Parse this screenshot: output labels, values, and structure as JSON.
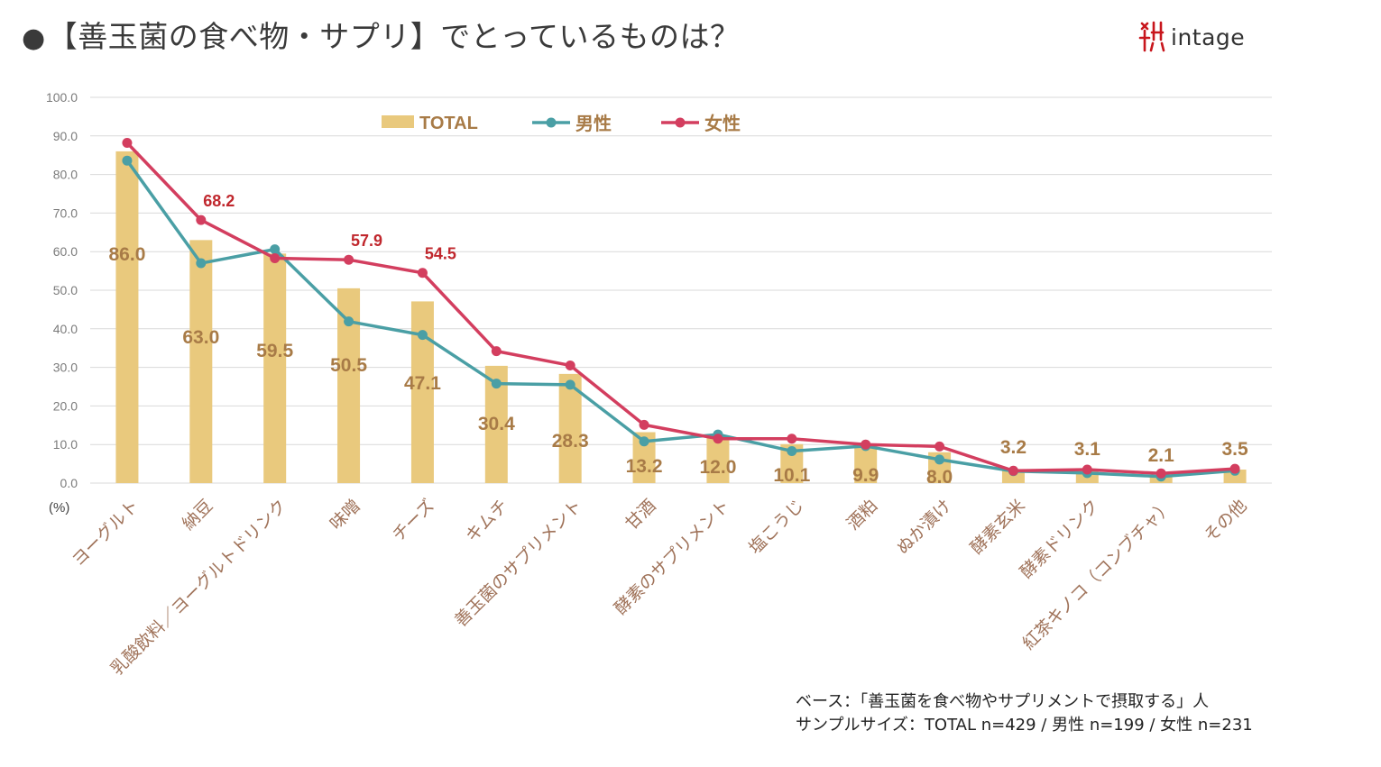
{
  "title": {
    "bullet": "●",
    "text": "【善玉菌の食べ物・サプリ】でとっているものは？"
  },
  "logo": {
    "text": "intage"
  },
  "footer": {
    "base": "ベース：「善玉菌を食べ物やサプリメントで摂取する」人",
    "sample": "サンプルサイズ：TOTAL n=429 / 男性 n=199 / 女性 n=231"
  },
  "colors": {
    "total": "#E9C97D",
    "male": "#4A9FA5",
    "female": "#D33E5F",
    "total_label": "#A87B47",
    "female_label": "#C0272D",
    "axis_text": "#7B7B7B",
    "category_text": "#A0735A",
    "grid": "#D9D9D9"
  },
  "chart_data": {
    "type": "bar",
    "unit": "(%)",
    "ylim": [
      0,
      100
    ],
    "yticks": [
      "0.0",
      "10.0",
      "20.0",
      "30.0",
      "40.0",
      "50.0",
      "60.0",
      "70.0",
      "80.0",
      "90.0",
      "100.0"
    ],
    "grid": true,
    "legend_position": "top",
    "categories": [
      "ヨーグルト",
      "納豆",
      "乳酸飲料／ヨーグルトドリンク",
      "味噌",
      "チーズ",
      "キムチ",
      "善玉菌のサプリメント",
      "甘酒",
      "酵素のサプリメント",
      "塩こうじ",
      "酒粕",
      "ぬか漬け",
      "酵素玄米",
      "酵素ドリンク",
      "紅茶キノコ（コンブチャ）",
      "その他"
    ],
    "series": [
      {
        "name": "TOTAL",
        "type": "bar",
        "values": [
          86.0,
          63.0,
          59.5,
          50.5,
          47.1,
          30.4,
          28.3,
          13.2,
          12.0,
          10.1,
          9.9,
          8.0,
          3.2,
          3.1,
          2.1,
          3.5
        ],
        "labels": [
          "86.0",
          "63.0",
          "59.5",
          "50.5",
          "47.1",
          "30.4",
          "28.3",
          "13.2",
          "12.0",
          "10.1",
          "9.9",
          "8.0",
          "3.2",
          "3.1",
          "2.1",
          "3.5"
        ]
      },
      {
        "name": "男性",
        "type": "line",
        "values": [
          83.6,
          57.0,
          60.6,
          41.9,
          38.4,
          25.8,
          25.5,
          10.8,
          12.6,
          8.3,
          9.6,
          6.1,
          3.1,
          2.6,
          1.7,
          3.2
        ]
      },
      {
        "name": "女性",
        "type": "line",
        "values": [
          88.2,
          68.2,
          58.3,
          57.9,
          54.5,
          34.2,
          30.5,
          15.1,
          11.5,
          11.5,
          10.0,
          9.5,
          3.2,
          3.5,
          2.5,
          3.7
        ],
        "highlight_labels": [
          {
            "index": 1,
            "label": "68.2"
          },
          {
            "index": 3,
            "label": "57.9"
          },
          {
            "index": 4,
            "label": "54.5"
          }
        ]
      }
    ]
  }
}
